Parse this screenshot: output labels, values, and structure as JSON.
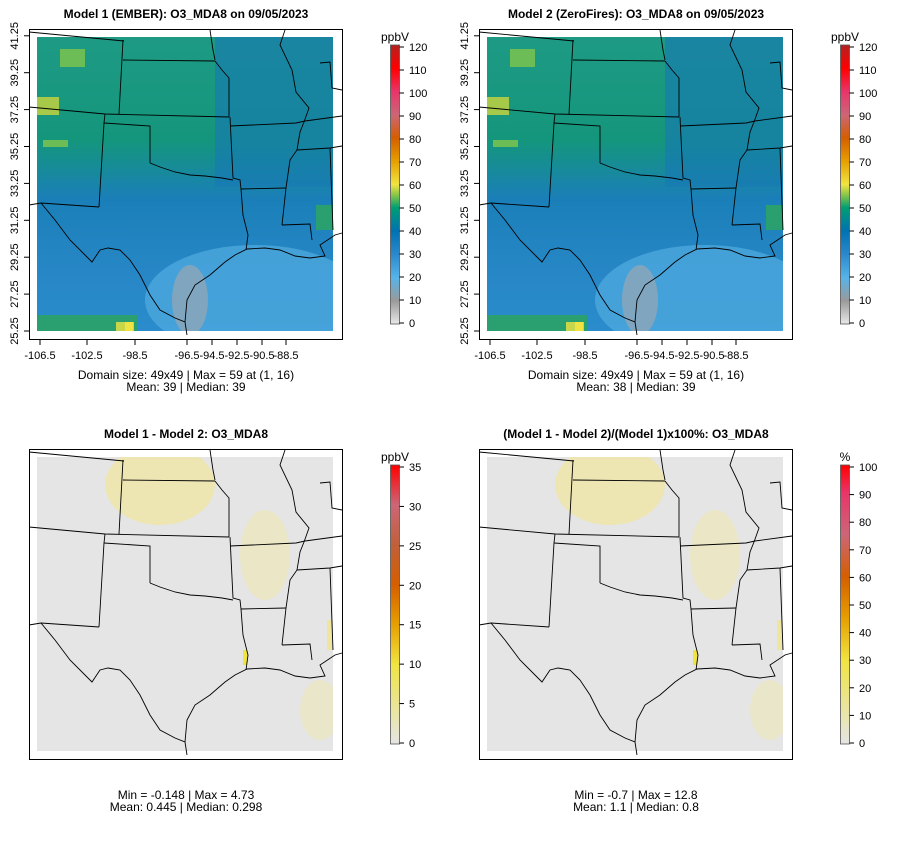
{
  "colorscales": {
    "ozone": [
      [
        0,
        "#e8e8e8"
      ],
      [
        10,
        "#9a9a9a"
      ],
      [
        20,
        "#56b4e9"
      ],
      [
        30,
        "#2b88cc"
      ],
      [
        40,
        "#0072b2"
      ],
      [
        50,
        "#009e73"
      ],
      [
        55,
        "#7cc24a"
      ],
      [
        60,
        "#f0e442"
      ],
      [
        70,
        "#e69f00"
      ],
      [
        80,
        "#d55e00"
      ],
      [
        90,
        "#cc6677"
      ],
      [
        100,
        "#e8356a"
      ],
      [
        110,
        "#ff0000"
      ],
      [
        120,
        "#b22222"
      ]
    ],
    "diff": [
      [
        0,
        "#e5e5e5"
      ],
      [
        10,
        "#f0e442"
      ],
      [
        15,
        "#e69f00"
      ],
      [
        20,
        "#d55e00"
      ],
      [
        25,
        "#c0603a"
      ],
      [
        30,
        "#cc6677"
      ],
      [
        35,
        "#ff0000"
      ]
    ],
    "pct": [
      [
        0,
        "#e5e5e5"
      ],
      [
        30,
        "#f0e442"
      ],
      [
        45,
        "#e69f00"
      ],
      [
        60,
        "#d55e00"
      ],
      [
        75,
        "#cc6677"
      ],
      [
        90,
        "#e8356a"
      ],
      [
        100,
        "#ff0000"
      ]
    ]
  },
  "panels": [
    {
      "title": "Model 1 (EMBER): O3_MDA8 on 09/05/2023",
      "kind": "ozone",
      "show_axes": true,
      "x_ticks": [
        "-106.5",
        "-102.5",
        "-98.5",
        "-96.5",
        "-94.5",
        "-92.5",
        "-90.5",
        "-88.5"
      ],
      "y_ticks": [
        "25.25",
        "27.25",
        "29.25",
        "31.25",
        "33.25",
        "35.25",
        "37.25",
        "39.25",
        "41.25"
      ],
      "colorbar": {
        "unit": "ppbV",
        "min": 0,
        "max": 120,
        "ticks": [
          "0",
          "10",
          "20",
          "30",
          "40",
          "50",
          "60",
          "70",
          "80",
          "90",
          "100",
          "110",
          "120"
        ]
      },
      "caption_line1": "Domain size: 49x49 | Max = 59 at (1, 16)",
      "caption_line2": "Mean: 39 |  Median: 39"
    },
    {
      "title": "Model 2 (ZeroFires): O3_MDA8 on 09/05/2023",
      "kind": "ozone",
      "show_axes": true,
      "x_ticks": [
        "-106.5",
        "-102.5",
        "-98.5",
        "-96.5",
        "-94.5",
        "-92.5",
        "-90.5",
        "-88.5"
      ],
      "y_ticks": [
        "25.25",
        "27.25",
        "29.25",
        "31.25",
        "33.25",
        "35.25",
        "37.25",
        "39.25",
        "41.25"
      ],
      "colorbar": {
        "unit": "ppbV",
        "min": 0,
        "max": 120,
        "ticks": [
          "0",
          "10",
          "20",
          "30",
          "40",
          "50",
          "60",
          "70",
          "80",
          "90",
          "100",
          "110",
          "120"
        ]
      },
      "caption_line1": "Domain size: 49x49 | Max = 59 at (1, 16)",
      "caption_line2": "Mean: 38 |  Median: 39"
    },
    {
      "title": "Model 1 - Model 2: O3_MDA8",
      "kind": "diff",
      "show_axes": false,
      "colorbar": {
        "unit": "ppbV",
        "min": 0,
        "max": 35,
        "ticks": [
          "0",
          "5",
          "10",
          "15",
          "20",
          "25",
          "30",
          "35"
        ]
      },
      "caption_line1": "Min = -0.148 | Max = 4.73",
      "caption_line2": "Mean: 0.445 |  Median: 0.298"
    },
    {
      "title": "(Model 1 - Model 2)/(Model 1)x100%: O3_MDA8",
      "kind": "pct",
      "show_axes": false,
      "colorbar": {
        "unit": "%",
        "min": 0,
        "max": 100,
        "ticks": [
          "0",
          "10",
          "20",
          "30",
          "40",
          "50",
          "60",
          "70",
          "80",
          "90",
          "100"
        ]
      },
      "caption_line1": "Min = -0.7 | Max = 12.8",
      "caption_line2": "Mean: 1.1 |  Median: 0.8"
    }
  ]
}
